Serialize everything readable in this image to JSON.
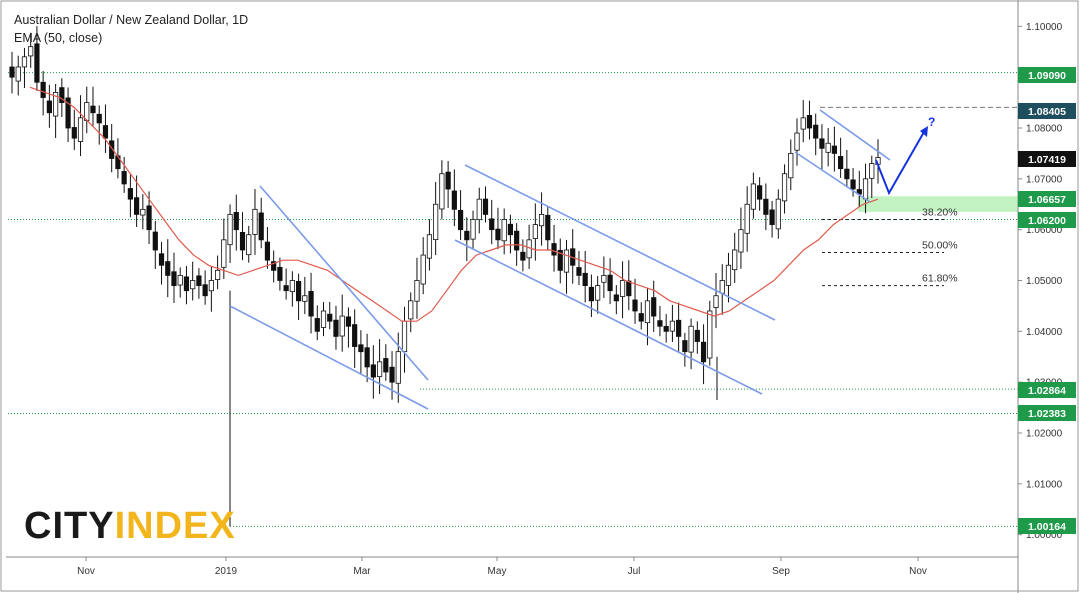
{
  "header": {
    "title": "Australian Dollar / New Zealand Dollar, 1D",
    "subtitle": "EMA (50, close)"
  },
  "logo": {
    "part1": "CITY",
    "part2": "INDEX"
  },
  "colors": {
    "candle": "#111111",
    "ema": "#e05a4e",
    "channel": "#7b9be8",
    "level": "#1e9a4a",
    "tag_green": "#1e9a4a",
    "tag_dark": "#1f4f5e",
    "tag_black": "#111111",
    "zone": "#b7f0b7",
    "arrow": "#1432e0"
  },
  "chart_data": {
    "type": "candlestick",
    "title": "Australian Dollar / New Zealand Dollar, 1D",
    "indicator": "EMA (50, close)",
    "x_ticks": [
      "Nov",
      "2019",
      "Mar",
      "May",
      "Jul",
      "Sep",
      "Nov"
    ],
    "y_ticks": [
      1.1,
      1.09,
      1.08,
      1.07,
      1.06,
      1.05,
      1.04,
      1.03,
      1.02,
      1.01,
      1.0
    ],
    "y_range": [
      0.996,
      1.104
    ],
    "price_levels": [
      {
        "value": 1.0909,
        "label": "1.09090",
        "style": "dotted",
        "tag": "green"
      },
      {
        "value": 1.08405,
        "label": "1.08405",
        "style": "dashed",
        "tag": "dark"
      },
      {
        "value": 1.07419,
        "label": "1.07419",
        "style": "none",
        "tag": "black"
      },
      {
        "value": 1.06657,
        "label": "1.06657",
        "style": "none",
        "tag": "green"
      },
      {
        "value": 1.062,
        "label": "1.06200",
        "style": "dotted",
        "tag": "green"
      },
      {
        "value": 1.02864,
        "label": "1.02864",
        "style": "dotted",
        "tag": "green"
      },
      {
        "value": 1.02383,
        "label": "1.02383",
        "style": "dotted",
        "tag": "green"
      },
      {
        "value": 1.00164,
        "label": "1.00164",
        "style": "dotted",
        "tag": "green"
      }
    ],
    "fibonacci": [
      {
        "label": "38.20%",
        "value": 1.062
      },
      {
        "label": "50.00%",
        "value": 1.0555
      },
      {
        "label": "61.80%",
        "value": 1.049
      }
    ],
    "annotation": "?",
    "close_path": [
      1.09,
      1.092,
      1.094,
      1.096,
      1.089,
      1.086,
      1.083,
      1.087,
      1.085,
      1.08,
      1.078,
      1.082,
      1.085,
      1.083,
      1.081,
      1.078,
      1.074,
      1.072,
      1.069,
      1.066,
      1.063,
      1.064,
      1.06,
      1.056,
      1.053,
      1.051,
      1.049,
      1.051,
      1.048,
      1.05,
      1.049,
      1.047,
      1.05,
      1.052,
      1.058,
      1.063,
      1.06,
      1.056,
      1.059,
      1.064,
      1.058,
      1.054,
      1.052,
      1.05,
      1.048,
      1.05,
      1.046,
      1.047,
      1.043,
      1.04,
      1.044,
      1.042,
      1.039,
      1.043,
      1.041,
      1.037,
      1.036,
      1.033,
      1.031,
      1.034,
      1.032,
      1.03,
      1.036,
      1.042,
      1.046,
      1.05,
      1.055,
      1.059,
      1.065,
      1.071,
      1.068,
      1.064,
      1.06,
      1.058,
      1.062,
      1.066,
      1.063,
      1.06,
      1.058,
      1.062,
      1.059,
      1.056,
      1.054,
      1.058,
      1.061,
      1.063,
      1.058,
      1.055,
      1.052,
      1.056,
      1.053,
      1.051,
      1.049,
      1.046,
      1.049,
      1.051,
      1.048,
      1.046,
      1.05,
      1.047,
      1.044,
      1.042,
      1.046,
      1.043,
      1.041,
      1.04,
      1.042,
      1.039,
      1.036,
      1.041,
      1.038,
      1.034,
      1.044,
      1.047,
      1.05,
      1.053,
      1.056,
      1.06,
      1.065,
      1.069,
      1.066,
      1.063,
      1.061,
      1.066,
      1.071,
      1.075,
      1.079,
      1.082,
      1.08,
      1.078,
      1.076,
      1.077,
      1.075,
      1.072,
      1.07,
      1.068,
      1.067,
      1.07,
      1.073,
      1.07419
    ],
    "ema_path": [
      1.088,
      1.087,
      1.086,
      1.084,
      1.081,
      1.078,
      1.074,
      1.07,
      1.066,
      1.062,
      1.058,
      1.055,
      1.053,
      1.052,
      1.051,
      1.052,
      1.053,
      1.054,
      1.054,
      1.053,
      1.052,
      1.05,
      1.048,
      1.046,
      1.044,
      1.042,
      1.042,
      1.044,
      1.048,
      1.052,
      1.055,
      1.056,
      1.057,
      1.057,
      1.056,
      1.056,
      1.055,
      1.054,
      1.053,
      1.052,
      1.05,
      1.049,
      1.048,
      1.046,
      1.045,
      1.044,
      1.043,
      1.044,
      1.046,
      1.048,
      1.05,
      1.053,
      1.056,
      1.058,
      1.061,
      1.063,
      1.065,
      1.066
    ]
  }
}
